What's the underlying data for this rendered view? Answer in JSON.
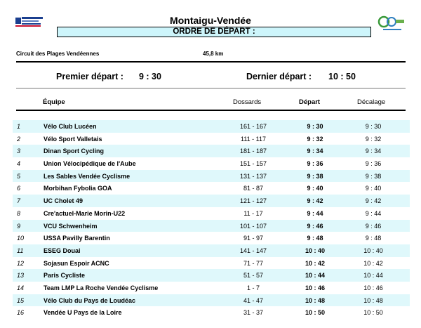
{
  "header": {
    "title": "Montaigu-Vendée",
    "subtitle": "ORDRE DE DÉPART :",
    "circuit": "Circuit des Plages Vendéennes",
    "distance": "45,8 km",
    "left_logo_icon": "federation-logo",
    "right_logo_icon": "club-logo"
  },
  "departures": {
    "first_label": "Premier départ :",
    "first_time": "9 : 30",
    "last_label": "Dernier départ :",
    "last_time": "10 : 50"
  },
  "columns": {
    "team": "Équipe",
    "bibs": "Dossards",
    "start": "Départ",
    "gap": "Décalage"
  },
  "rows": [
    {
      "rank": "1",
      "team": "Vélo Club Lucéen",
      "bibs": "161 - 167",
      "start": "9 : 30",
      "gap": "9 : 30"
    },
    {
      "rank": "2",
      "team": "Vélo Sport Valletais",
      "bibs": "111 - 117",
      "start": "9 : 32",
      "gap": "9 : 32"
    },
    {
      "rank": "3",
      "team": "Dinan Sport Cycling",
      "bibs": "181 - 187",
      "start": "9 : 34",
      "gap": "9 : 34"
    },
    {
      "rank": "4",
      "team": "Union Vélocipédique de l'Aube",
      "bibs": "151 - 157",
      "start": "9 : 36",
      "gap": "9 : 36"
    },
    {
      "rank": "5",
      "team": "Les Sables Vendée Cyclisme",
      "bibs": "131 - 137",
      "start": "9 : 38",
      "gap": "9 : 38"
    },
    {
      "rank": "6",
      "team": "Morbihan Fybolia GOA",
      "bibs": "81 - 87",
      "start": "9 : 40",
      "gap": "9 : 40"
    },
    {
      "rank": "7",
      "team": "UC Cholet 49",
      "bibs": "121 - 127",
      "start": "9 : 42",
      "gap": "9 : 42"
    },
    {
      "rank": "8",
      "team": "Cre'actuel-Marie Morin-U22",
      "bibs": "11 - 17",
      "start": "9 : 44",
      "gap": "9 : 44"
    },
    {
      "rank": "9",
      "team": "VCU Schwenheim",
      "bibs": "101 - 107",
      "start": "9 : 46",
      "gap": "9 : 46"
    },
    {
      "rank": "10",
      "team": "USSA Pavilly Barentin",
      "bibs": "91 - 97",
      "start": "9 : 48",
      "gap": "9 : 48"
    },
    {
      "rank": "11",
      "team": "ESEG Douai",
      "bibs": "141 - 147",
      "start": "10 : 40",
      "gap": "10 : 40"
    },
    {
      "rank": "12",
      "team": "Sojasun Espoir ACNC",
      "bibs": "71 - 77",
      "start": "10 : 42",
      "gap": "10 : 42"
    },
    {
      "rank": "13",
      "team": "Paris Cycliste",
      "bibs": "51 - 57",
      "start": "10 : 44",
      "gap": "10 : 44"
    },
    {
      "rank": "14",
      "team": "Team LMP La Roche Vendée Cyclisme",
      "bibs": "1 - 7",
      "start": "10 : 46",
      "gap": "10 : 46"
    },
    {
      "rank": "15",
      "team": "Vélo Club du Pays de Loudéac",
      "bibs": "41 - 47",
      "start": "10 : 48",
      "gap": "10 : 48"
    },
    {
      "rank": "16",
      "team": "Vendée U Pays de la Loire",
      "bibs": "31 - 37",
      "start": "10 : 50",
      "gap": "10 : 50"
    }
  ]
}
